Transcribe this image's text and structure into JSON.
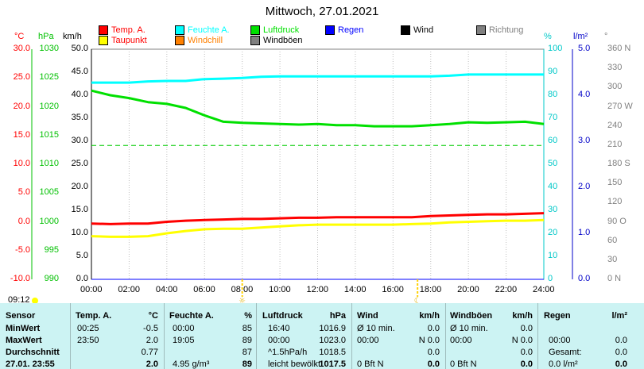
{
  "title": "Mittwoch, 27.01.2021",
  "legend": [
    {
      "label": "Temp. A.",
      "color": "#ff0000"
    },
    {
      "label": "Feuchte A.",
      "color": "#00ffff"
    },
    {
      "label": "Luftdruck",
      "color": "#00e000"
    },
    {
      "label": "Regen",
      "color": "#0000ff"
    },
    {
      "label": "Wind",
      "color": "#000000"
    },
    {
      "label": "Richtung",
      "color": "#808080"
    },
    {
      "label": "Taupunkt",
      "color": "#ffff00"
    },
    {
      "label": "Windchill",
      "color": "#ff8000"
    },
    {
      "label": "Windböen",
      "color": "#808080"
    }
  ],
  "axis_headers": {
    "temp": "°C",
    "press": "hPa",
    "wind": "km/h",
    "hum": "%",
    "rain": "l/m²",
    "dir": "°"
  },
  "current_time": "09:12",
  "chart_data": {
    "type": "line",
    "x": [
      "00:00",
      "02:00",
      "04:00",
      "06:00",
      "08:00",
      "10:00",
      "12:00",
      "14:00",
      "16:00",
      "18:00",
      "20:00",
      "22:00",
      "24:00"
    ],
    "axes": {
      "temp_c": {
        "ticks": [
          "30.0",
          "25.0",
          "20.0",
          "15.0",
          "10.0",
          "5.0",
          "0.0",
          "-5.0",
          "-10.0"
        ],
        "ylim": [
          -10,
          30
        ]
      },
      "pressure_hpa": {
        "ticks": [
          "1030",
          "1025",
          "1020",
          "1015",
          "1010",
          "1005",
          "1000",
          "995",
          "990"
        ],
        "ylim": [
          990,
          1030
        ]
      },
      "wind_kmh": {
        "ticks": [
          "50.0",
          "45.0",
          "40.0",
          "35.0",
          "30.0",
          "25.0",
          "20.0",
          "15.0",
          "10.0",
          "5.0",
          "0.0"
        ],
        "ylim": [
          0,
          50
        ]
      },
      "humidity_pct": {
        "ticks": [
          "100",
          "90",
          "80",
          "70",
          "60",
          "50",
          "40",
          "30",
          "20",
          "10",
          "0"
        ],
        "ylim": [
          0,
          100
        ]
      },
      "rain_lm2": {
        "ticks": [
          "5.0",
          "4.0",
          "3.0",
          "2.0",
          "1.0",
          "0.0"
        ],
        "ylim": [
          0,
          5
        ]
      },
      "direction": {
        "ticks": [
          "360 N",
          "330",
          "300",
          "270 W",
          "240",
          "210",
          "180 S",
          "150",
          "120",
          "90 O",
          "60",
          "30",
          "0 N"
        ],
        "ylim": [
          0,
          360
        ]
      }
    },
    "series": [
      {
        "name": "Temp. A.",
        "axis": "temp_c",
        "color": "#ff0000",
        "width": 3,
        "points": [
          [
            0,
            -0.3
          ],
          [
            1,
            -0.4
          ],
          [
            2,
            -0.3
          ],
          [
            3,
            -0.3
          ],
          [
            4,
            0.0
          ],
          [
            5,
            0.2
          ],
          [
            6,
            0.3
          ],
          [
            7,
            0.4
          ],
          [
            8,
            0.5
          ],
          [
            9,
            0.5
          ],
          [
            10,
            0.6
          ],
          [
            11,
            0.7
          ],
          [
            12,
            0.7
          ],
          [
            13,
            0.8
          ],
          [
            14,
            0.8
          ],
          [
            15,
            0.8
          ],
          [
            16,
            0.8
          ],
          [
            17,
            0.8
          ],
          [
            18,
            1.0
          ],
          [
            19,
            1.1
          ],
          [
            20,
            1.2
          ],
          [
            21,
            1.3
          ],
          [
            22,
            1.3
          ],
          [
            23,
            1.4
          ],
          [
            24,
            1.5
          ]
        ]
      },
      {
        "name": "Taupunkt",
        "axis": "temp_c",
        "color": "#ffff00",
        "width": 3,
        "points": [
          [
            0,
            -2.5
          ],
          [
            1,
            -2.6
          ],
          [
            2,
            -2.6
          ],
          [
            3,
            -2.5
          ],
          [
            4,
            -2.0
          ],
          [
            5,
            -1.6
          ],
          [
            6,
            -1.3
          ],
          [
            7,
            -1.2
          ],
          [
            8,
            -1.2
          ],
          [
            9,
            -1.0
          ],
          [
            10,
            -0.8
          ],
          [
            11,
            -0.6
          ],
          [
            12,
            -0.5
          ],
          [
            13,
            -0.5
          ],
          [
            14,
            -0.5
          ],
          [
            15,
            -0.5
          ],
          [
            16,
            -0.5
          ],
          [
            17,
            -0.4
          ],
          [
            18,
            -0.3
          ],
          [
            19,
            -0.1
          ],
          [
            20,
            0.0
          ],
          [
            21,
            0.1
          ],
          [
            22,
            0.2
          ],
          [
            23,
            0.2
          ],
          [
            24,
            0.3
          ]
        ]
      },
      {
        "name": "Feuchte A.",
        "axis": "humidity_pct",
        "color": "#00ffff",
        "width": 3,
        "points": [
          [
            0,
            85.5
          ],
          [
            1,
            85.5
          ],
          [
            2,
            85.5
          ],
          [
            3,
            86
          ],
          [
            4,
            86.2
          ],
          [
            5,
            86.2
          ],
          [
            6,
            87
          ],
          [
            7,
            87.2
          ],
          [
            8,
            87.5
          ],
          [
            9,
            88
          ],
          [
            10,
            88.2
          ],
          [
            11,
            88.2
          ],
          [
            12,
            88.2
          ],
          [
            13,
            88.2
          ],
          [
            14,
            88.2
          ],
          [
            15,
            88.2
          ],
          [
            16,
            88.2
          ],
          [
            17,
            88.2
          ],
          [
            18,
            88.2
          ],
          [
            19,
            88.5
          ],
          [
            20,
            89
          ],
          [
            21,
            89
          ],
          [
            22,
            89
          ],
          [
            23,
            89
          ],
          [
            24,
            89
          ]
        ]
      },
      {
        "name": "Luftdruck",
        "axis": "pressure_hpa",
        "color": "#00e000",
        "width": 3,
        "points": [
          [
            0,
            1022.8
          ],
          [
            1,
            1022.0
          ],
          [
            2,
            1021.5
          ],
          [
            3,
            1020.8
          ],
          [
            4,
            1020.5
          ],
          [
            5,
            1019.8
          ],
          [
            6,
            1018.5
          ],
          [
            7,
            1017.4
          ],
          [
            8,
            1017.2
          ],
          [
            9,
            1017.1
          ],
          [
            10,
            1017.0
          ],
          [
            11,
            1016.9
          ],
          [
            12,
            1017.0
          ],
          [
            13,
            1016.8
          ],
          [
            14,
            1016.8
          ],
          [
            15,
            1016.6
          ],
          [
            16,
            1016.6
          ],
          [
            17,
            1016.6
          ],
          [
            18,
            1016.8
          ],
          [
            19,
            1017.0
          ],
          [
            20,
            1017.3
          ],
          [
            21,
            1017.2
          ],
          [
            22,
            1017.3
          ],
          [
            23,
            1017.4
          ],
          [
            24,
            1017.0
          ]
        ]
      },
      {
        "name": "Regen",
        "axis": "rain_lm2",
        "color": "#0000ff",
        "width": 1,
        "points": [
          [
            0,
            0
          ],
          [
            24,
            0
          ]
        ]
      }
    ],
    "reference_line": {
      "axis": "humidity_pct",
      "value": 58.2,
      "color": "#00cc00",
      "dashed": true
    },
    "markers": [
      {
        "label": "☼",
        "hour": 8.0
      },
      {
        "label": "☾",
        "hour": 17.3
      }
    ]
  },
  "table": {
    "headers": {
      "sensor": "Sensor",
      "temp": "Temp. A.",
      "temp_unit": "°C",
      "hum": "Feuchte A.",
      "hum_unit": "%",
      "press": "Luftdruck",
      "press_unit": "hPa",
      "wind": "Wind",
      "wind_unit": "km/h",
      "gust": "Windböen",
      "gust_unit": "km/h",
      "rain": "Regen",
      "rain_unit": "l/m²"
    },
    "rows": [
      {
        "label": "MinWert",
        "t_time": "00:25",
        "t_val": "-0.5",
        "h_time": "00:00",
        "h_val": "85",
        "p_time": "16:40",
        "p_val": "1016.9",
        "w_time": "Ø 10 min.",
        "w_val": "0.0",
        "g_time": "Ø 10 min.",
        "g_val": "0.0",
        "r_time": "",
        "r_val": ""
      },
      {
        "label": "MaxWert",
        "t_time": "23:50",
        "t_val": "2.0",
        "h_time": "19:05",
        "h_val": "89",
        "p_time": "00:00",
        "p_val": "1023.0",
        "w_time": "00:00",
        "w_val": "N 0.0",
        "g_time": "00:00",
        "g_val": "N 0.0",
        "r_time": "00:00",
        "r_val": "0.0"
      },
      {
        "label": "Durchschnitt",
        "t_time": "",
        "t_val": "0.77",
        "h_time": "",
        "h_val": "87",
        "p_time": "^1.5hPa/h",
        "p_val": "1018.5",
        "w_time": "",
        "w_val": "0.0",
        "g_time": "",
        "g_val": "0.0",
        "r_time": "Gesamt:",
        "r_val": "0.0"
      },
      {
        "label": "27.01. 23:55",
        "t_time": "",
        "t_val": "2.0",
        "h_time": "4.95 g/m³",
        "h_val": "89",
        "p_time": "leicht bewölkt",
        "p_val": "1017.5",
        "w_time": "0 Bft N",
        "w_val": "0.0",
        "g_time": "0 Bft N",
        "g_val": "0.0",
        "r_time": "0.0 l/m²",
        "r_val": "0.0"
      }
    ]
  }
}
